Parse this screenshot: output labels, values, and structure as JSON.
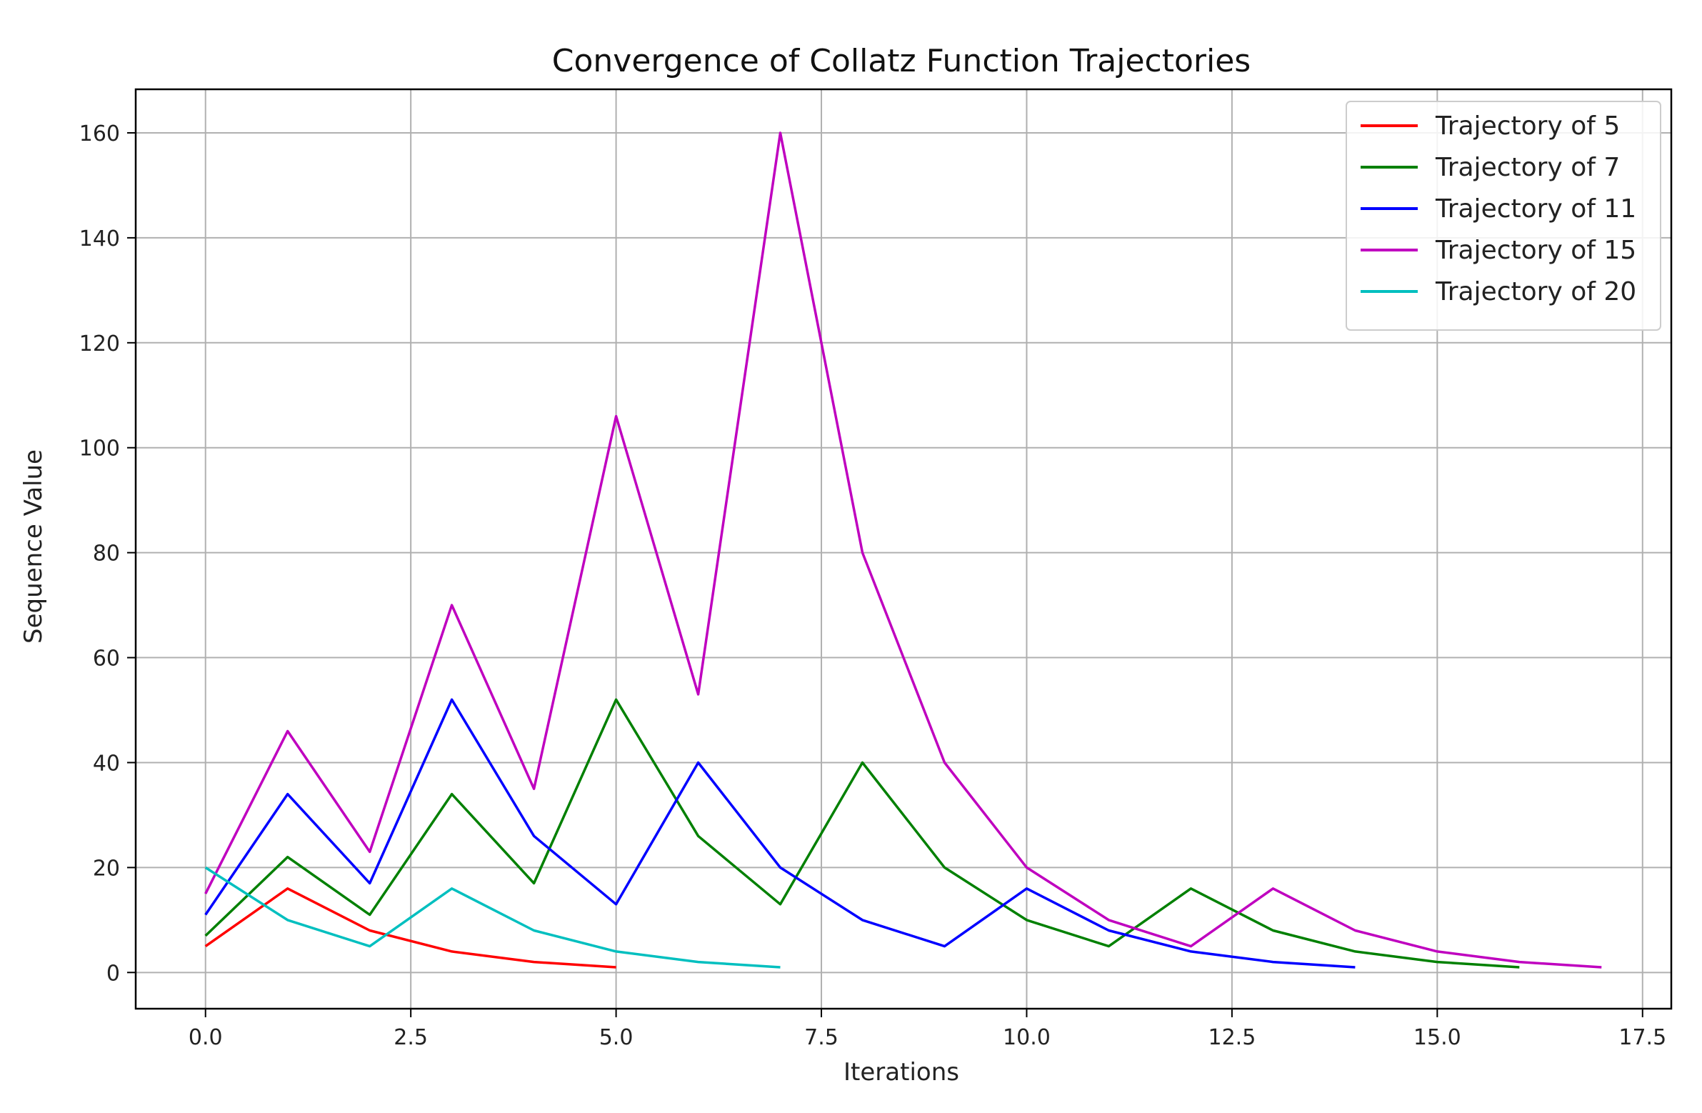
{
  "chart_data": {
    "type": "line",
    "title": "Convergence of Collatz Function Trajectories",
    "xlabel": "Iterations",
    "ylabel": "Sequence Value",
    "xlim": [
      -0.85,
      17.85
    ],
    "ylim": [
      -6.9,
      168.3
    ],
    "xticks": [
      0,
      2.5,
      5,
      7.5,
      10,
      12.5,
      15,
      17.5
    ],
    "xtick_labels": [
      "0.0",
      "2.5",
      "5.0",
      "7.5",
      "10.0",
      "12.5",
      "15.0",
      "17.5"
    ],
    "yticks": [
      0,
      20,
      40,
      60,
      80,
      100,
      120,
      140,
      160
    ],
    "ytick_labels": [
      "0",
      "20",
      "40",
      "60",
      "80",
      "100",
      "120",
      "140",
      "160"
    ],
    "grid": true,
    "legend_position": "top-right",
    "series": [
      {
        "name": "Trajectory of 5",
        "color": "#ff0000",
        "values": [
          5,
          16,
          8,
          4,
          2,
          1
        ]
      },
      {
        "name": "Trajectory of 7",
        "color": "#008000",
        "values": [
          7,
          22,
          11,
          34,
          17,
          52,
          26,
          13,
          40,
          20,
          10,
          5,
          16,
          8,
          4,
          2,
          1
        ]
      },
      {
        "name": "Trajectory of 11",
        "color": "#0000ff",
        "values": [
          11,
          34,
          17,
          52,
          26,
          13,
          40,
          20,
          10,
          5,
          16,
          8,
          4,
          2,
          1
        ]
      },
      {
        "name": "Trajectory of 15",
        "color": "#bf00bf",
        "values": [
          15,
          46,
          23,
          70,
          35,
          106,
          53,
          160,
          80,
          40,
          20,
          10,
          5,
          16,
          8,
          4,
          2,
          1
        ]
      },
      {
        "name": "Trajectory of 20",
        "color": "#00bfbf",
        "values": [
          20,
          10,
          5,
          16,
          8,
          4,
          2,
          1
        ]
      }
    ]
  }
}
